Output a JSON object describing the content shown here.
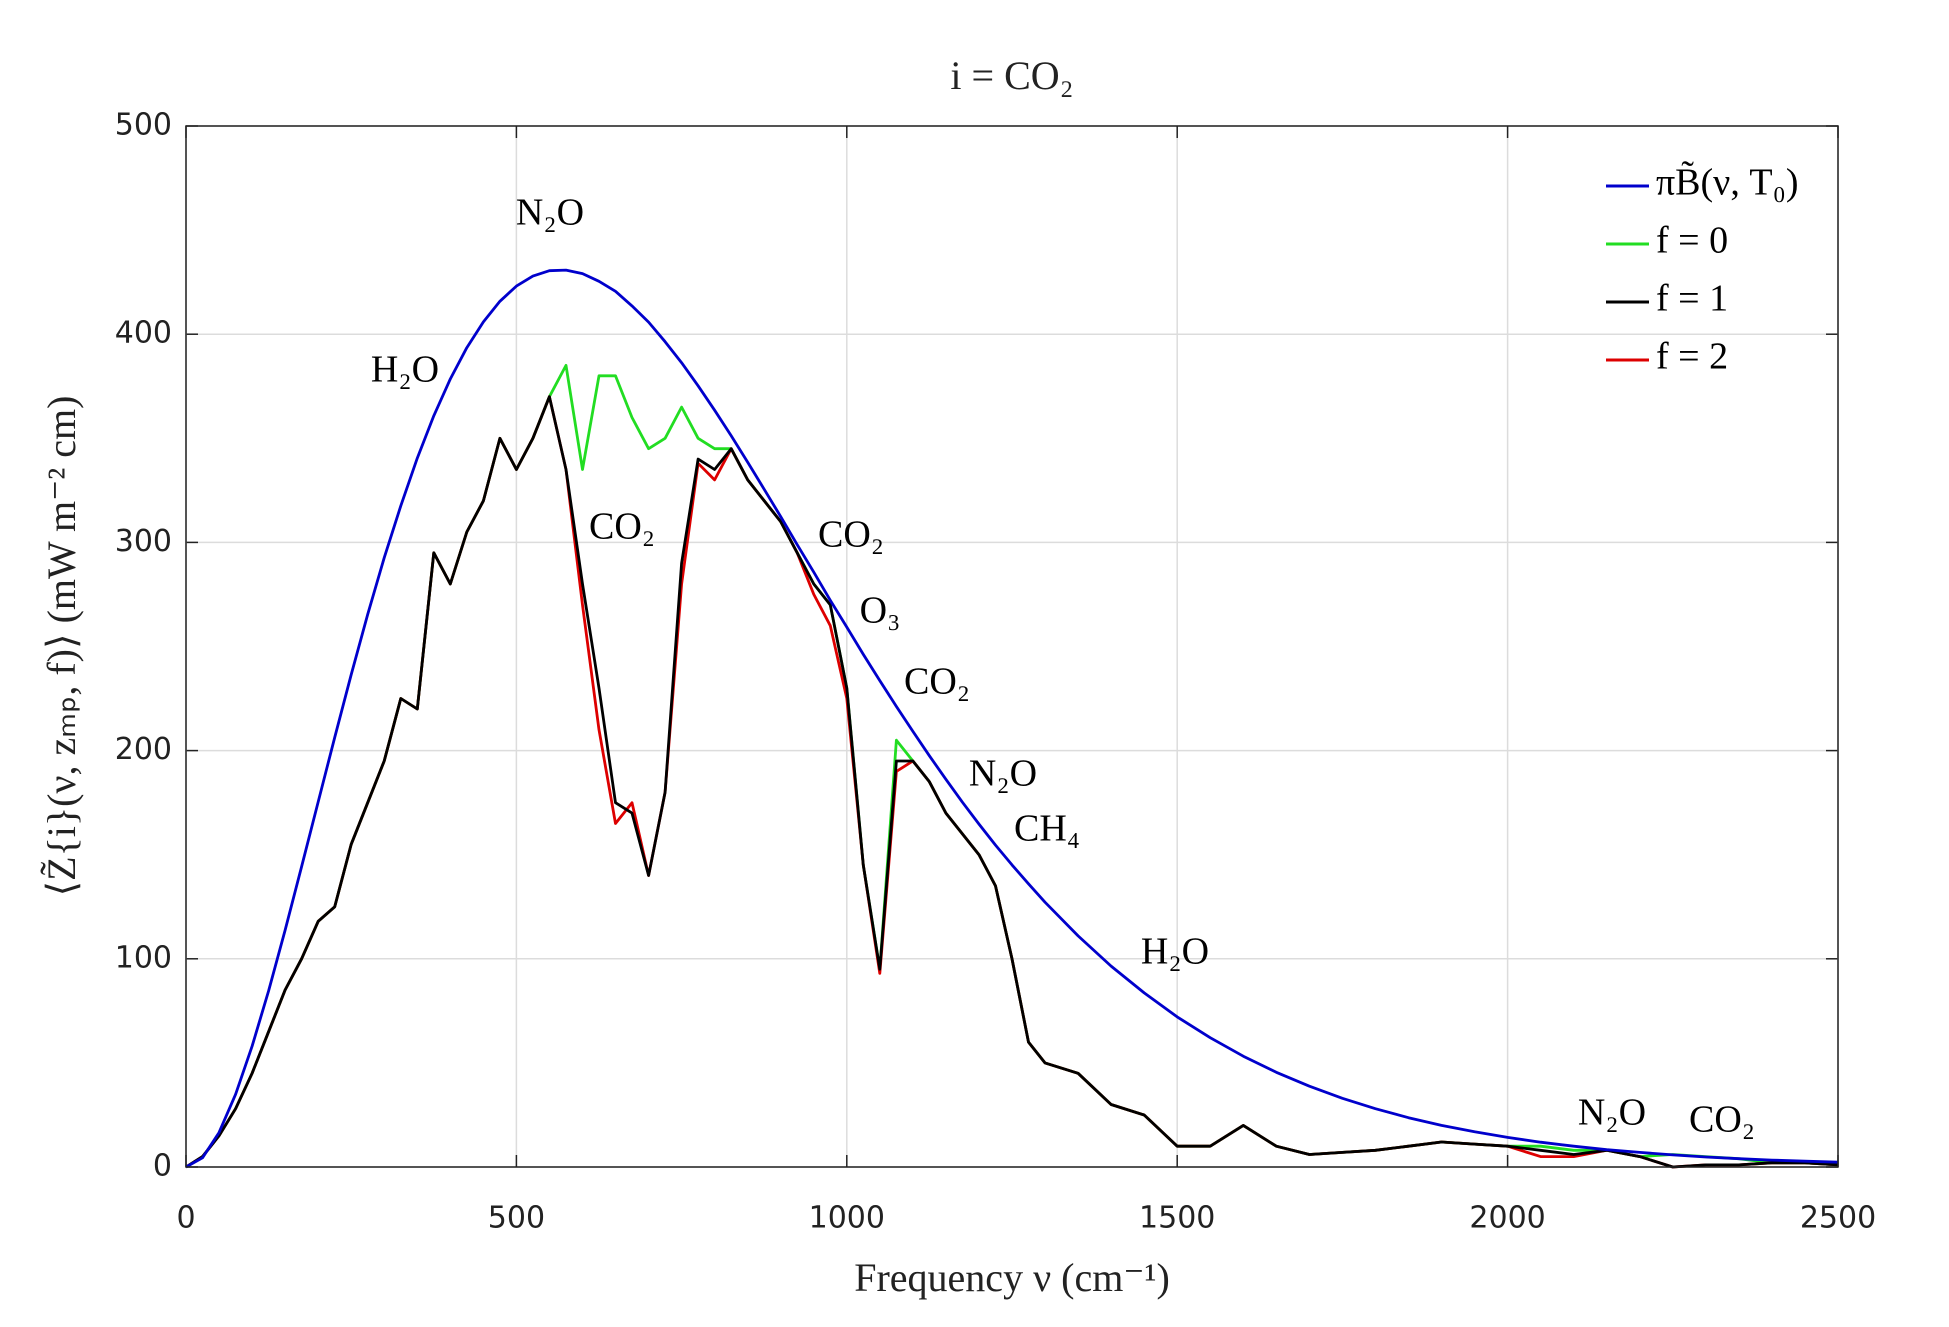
{
  "chart_data": {
    "type": "line",
    "title": "i = CO₂",
    "xlabel": "Frequency ν (cm⁻¹)",
    "ylabel": "⟨Z̃{i}(ν, zₘₚ, f)⟩ (mW m⁻² cm)",
    "xlim": [
      0,
      2500
    ],
    "xticks": [
      0,
      500,
      1000,
      1500,
      2000,
      2500
    ],
    "ylim": [
      0,
      500
    ],
    "yticks": [
      0,
      100,
      200,
      300,
      400,
      500
    ],
    "grid": true,
    "legend": "upper right",
    "x": [
      0,
      25,
      50,
      75,
      100,
      125,
      150,
      175,
      200,
      225,
      250,
      275,
      300,
      325,
      350,
      375,
      400,
      425,
      450,
      475,
      500,
      525,
      550,
      575,
      600,
      625,
      650,
      675,
      700,
      725,
      750,
      775,
      800,
      825,
      850,
      875,
      900,
      925,
      950,
      975,
      1000,
      1025,
      1050,
      1075,
      1100,
      1125,
      1150,
      1175,
      1200,
      1225,
      1250,
      1275,
      1300,
      1350,
      1400,
      1450,
      1500,
      1550,
      1600,
      1650,
      1700,
      1750,
      1800,
      1850,
      1900,
      1950,
      2000,
      2050,
      2100,
      2150,
      2200,
      2250,
      2300,
      2350,
      2400,
      2450,
      2500
    ],
    "series": [
      {
        "name": "πB̃(ν, T₀)",
        "color": "#0000cc",
        "values": [
          0,
          4.4,
          16.5,
          34.9,
          58.0,
          84.6,
          113.7,
          144.3,
          175.4,
          206.3,
          236.5,
          265.4,
          292.6,
          317.6,
          340.5,
          360.8,
          378.5,
          393.5,
          405.9,
          415.8,
          423.1,
          427.9,
          430.5,
          430.8,
          429.1,
          425.4,
          420.6,
          413.6,
          405.8,
          396.4,
          386.3,
          375.2,
          363.5,
          351.2,
          338.5,
          325.5,
          312.4,
          298.9,
          285.7,
          272.2,
          259.3,
          246.2,
          233.6,
          221.2,
          209.2,
          197.5,
          186.2,
          175.2,
          164.7,
          154.6,
          145.1,
          136.0,
          127.2,
          111.0,
          96.5,
          83.6,
          72.1,
          62.1,
          53.2,
          45.5,
          38.8,
          33.0,
          28.0,
          23.7,
          20.0,
          16.9,
          14.2,
          11.9,
          10.0,
          8.3,
          7.0,
          5.8,
          4.8,
          4.0,
          3.3,
          2.8,
          2.3
        ]
      },
      {
        "name": "f = 0",
        "color": "#22dd22",
        "values": [
          0,
          5,
          15,
          28,
          45,
          65,
          85,
          100,
          118,
          125,
          155,
          175,
          195,
          225,
          220,
          295,
          280,
          305,
          320,
          350,
          335,
          350,
          370,
          385,
          335,
          380,
          380,
          360,
          345,
          350,
          365,
          350,
          345,
          345,
          330,
          320,
          310,
          295,
          280,
          270,
          230,
          145,
          95,
          205,
          195,
          185,
          170,
          160,
          150,
          135,
          100,
          60,
          50,
          45,
          30,
          25,
          10,
          10,
          20,
          10,
          6,
          7,
          8,
          10,
          12,
          11,
          10,
          10,
          8,
          8,
          5,
          6,
          5,
          4,
          2,
          2,
          1
        ]
      },
      {
        "name": "f = 1",
        "color": "#000000",
        "values": [
          0,
          5,
          15,
          28,
          45,
          65,
          85,
          100,
          118,
          125,
          155,
          175,
          195,
          225,
          220,
          295,
          280,
          305,
          320,
          350,
          335,
          350,
          370,
          335,
          280,
          230,
          175,
          170,
          140,
          180,
          290,
          340,
          335,
          345,
          330,
          320,
          310,
          295,
          280,
          270,
          230,
          145,
          95,
          195,
          195,
          185,
          170,
          160,
          150,
          135,
          100,
          60,
          50,
          45,
          30,
          25,
          10,
          10,
          20,
          10,
          6,
          7,
          8,
          10,
          12,
          11,
          10,
          8,
          6,
          8,
          5,
          0,
          1,
          1,
          2,
          2,
          1
        ]
      },
      {
        "name": "f = 2",
        "color": "#dd0000",
        "values": [
          0,
          5,
          15,
          28,
          45,
          65,
          85,
          100,
          118,
          125,
          155,
          175,
          195,
          225,
          220,
          295,
          280,
          305,
          320,
          350,
          335,
          350,
          370,
          335,
          270,
          210,
          165,
          175,
          140,
          180,
          280,
          338,
          330,
          345,
          330,
          320,
          310,
          295,
          275,
          260,
          225,
          145,
          93,
          190,
          195,
          185,
          170,
          160,
          150,
          135,
          100,
          60,
          50,
          45,
          30,
          25,
          10,
          10,
          20,
          10,
          6,
          7,
          8,
          10,
          12,
          11,
          10,
          5,
          5,
          8,
          5,
          0,
          1,
          1,
          2,
          2,
          1
        ]
      }
    ],
    "annotations": [
      "N₂O",
      "H₂O",
      "CO₂",
      "CO₂",
      "O₃",
      "CO₂",
      "N₂O",
      "CH₄",
      "H₂O",
      "N₂O",
      "CO₂"
    ]
  }
}
